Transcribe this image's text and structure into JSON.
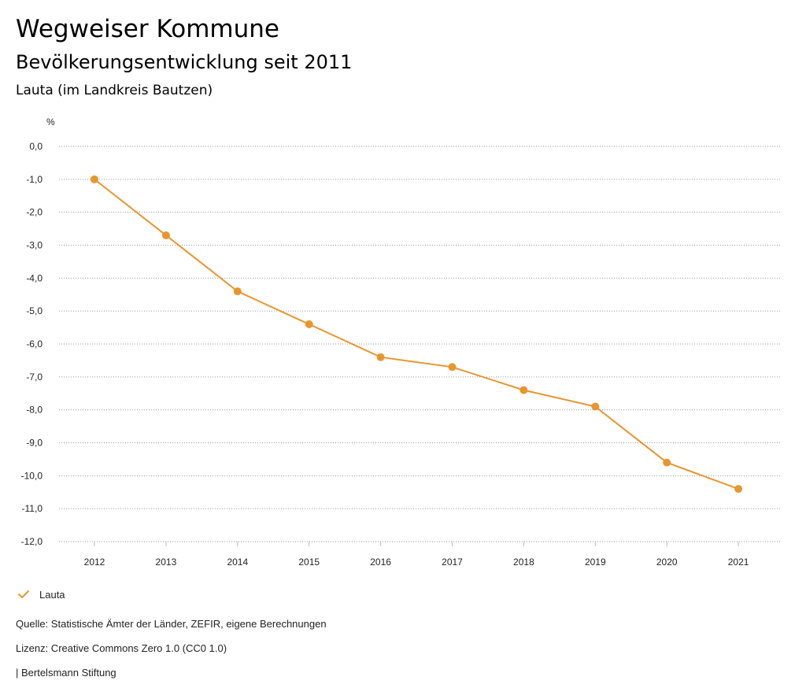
{
  "header": {
    "title": "Wegweiser Kommune",
    "subtitle": "Bevölkerungsentwicklung seit 2011",
    "region": "Lauta (im Landkreis Bautzen)"
  },
  "chart_data": {
    "type": "line",
    "ylabel": "%",
    "ylim": [
      -12,
      0
    ],
    "y_ticks": [
      "0,0",
      "-1,0",
      "-2,0",
      "-3,0",
      "-4,0",
      "-5,0",
      "-6,0",
      "-7,0",
      "-8,0",
      "-9,0",
      "-10,0",
      "-11,0",
      "-12,0"
    ],
    "categories": [
      "2012",
      "2013",
      "2014",
      "2015",
      "2016",
      "2017",
      "2018",
      "2019",
      "2020",
      "2021"
    ],
    "series": [
      {
        "name": "Lauta",
        "color": "#e8962e",
        "values": [
          -1.0,
          -2.7,
          -4.4,
          -5.4,
          -6.4,
          -6.7,
          -7.4,
          -7.9,
          -9.6,
          -10.4
        ]
      }
    ],
    "grid": true,
    "legend": "bottom-left"
  },
  "footer": {
    "source": "Quelle: Statistische Ämter der Länder, ZEFIR, eigene Berechnungen",
    "license": "Lizenz: Creative Commons Zero 1.0 (CC0 1.0)",
    "publisher": "| Bertelsmann Stiftung"
  }
}
